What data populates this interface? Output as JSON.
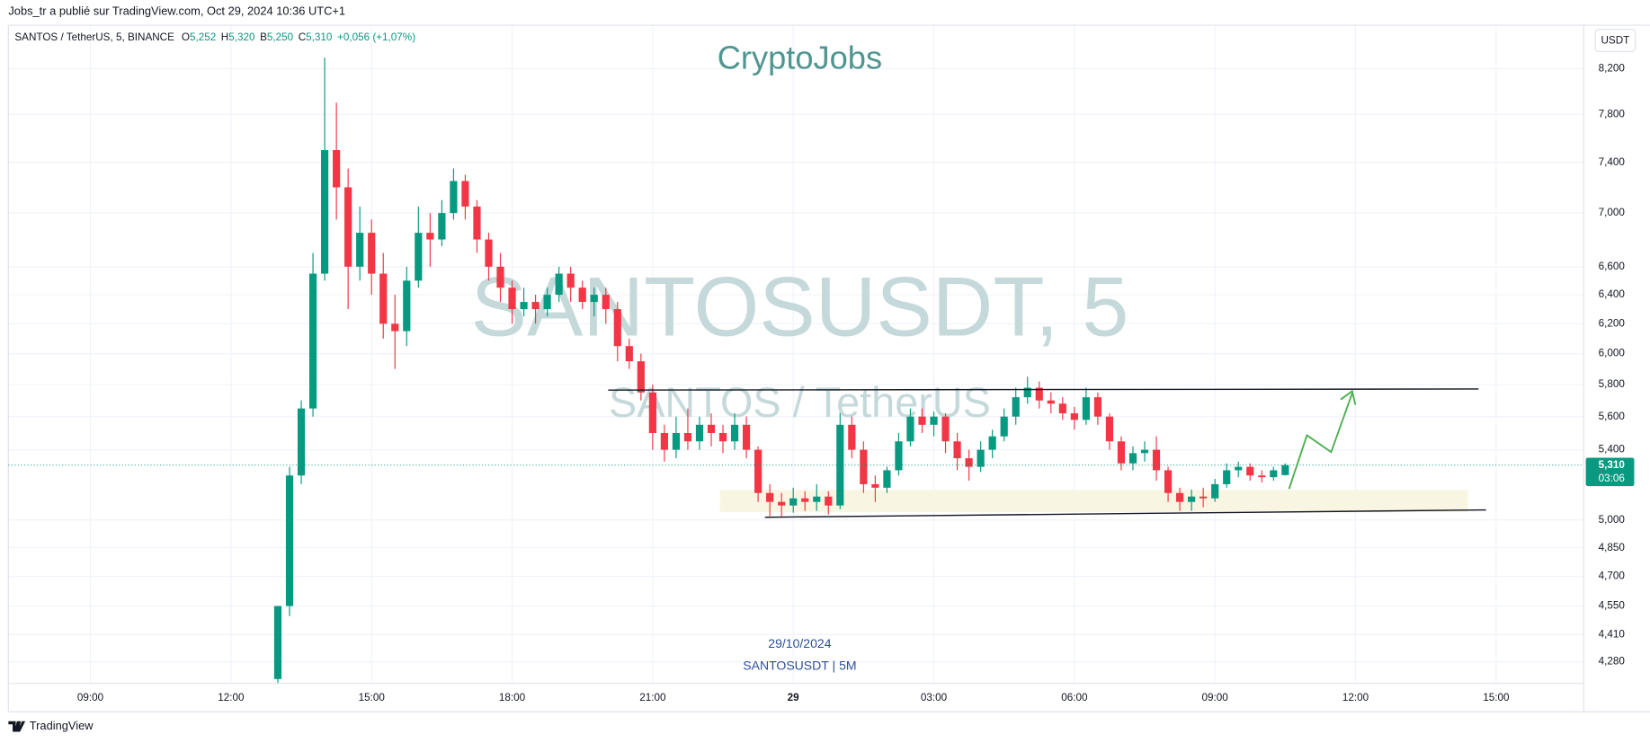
{
  "page": {
    "published": "Jobs_tr a publié sur TradingView.com, Oct 29, 2024 10:36 UTC+1",
    "symbol": "SANTOS / TetherUS, 5, BINANCE",
    "legend": [
      {
        "key": "O",
        "value": "5,252"
      },
      {
        "key": "H",
        "value": "5,320"
      },
      {
        "key": "B",
        "value": "5,250"
      },
      {
        "key": "C",
        "value": "5,310"
      }
    ],
    "change": "+0,056 (+1,07%)",
    "currency": "USDT",
    "brand": "CryptoJobs",
    "watermark": "SANTOSUSDT, 5",
    "watermark_sub": "SANTOS / TetherUS",
    "date": "29/10/2024",
    "caption": "SANTOSUSDT | 5M",
    "countdown": "03:06",
    "logo": "TradingView"
  },
  "chart_data": {
    "type": "candlestick",
    "log_scale": true,
    "grid": true,
    "up_color": "#089981",
    "down_color": "#f23645",
    "last_price": {
      "value": 5.31,
      "label": "5,310"
    },
    "xlim": [
      7.25,
      40.87
    ],
    "xticks": [
      {
        "value": 9,
        "label": "09:00"
      },
      {
        "value": 12,
        "label": "12:00"
      },
      {
        "value": 15,
        "label": "15:00"
      },
      {
        "value": 18,
        "label": "18:00"
      },
      {
        "value": 21,
        "label": "21:00"
      },
      {
        "value": 24,
        "label": "29"
      },
      {
        "value": 27,
        "label": "03:00"
      },
      {
        "value": 30,
        "label": "06:00"
      },
      {
        "value": 33,
        "label": "09:00"
      },
      {
        "value": 36,
        "label": "12:00"
      },
      {
        "value": 39,
        "label": "15:00"
      }
    ],
    "ylim": [
      4.18,
      8.6
    ],
    "yticks": [
      {
        "value": 8.2,
        "label": "8,200"
      },
      {
        "value": 7.8,
        "label": "7,800"
      },
      {
        "value": 7.4,
        "label": "7,400"
      },
      {
        "value": 7.0,
        "label": "7,000"
      },
      {
        "value": 6.6,
        "label": "6,600"
      },
      {
        "value": 6.4,
        "label": "6,400"
      },
      {
        "value": 6.2,
        "label": "6,200"
      },
      {
        "value": 6.0,
        "label": "6,000"
      },
      {
        "value": 5.8,
        "label": "5,800"
      },
      {
        "value": 5.6,
        "label": "5,600"
      },
      {
        "value": 5.4,
        "label": "5,400"
      },
      {
        "value": 5.0,
        "label": "5,000"
      },
      {
        "value": 4.85,
        "label": "4,850"
      },
      {
        "value": 4.7,
        "label": "4,700"
      },
      {
        "value": 4.55,
        "label": "4,550"
      },
      {
        "value": 4.41,
        "label": "4,410"
      },
      {
        "value": 4.28,
        "label": "4,280"
      }
    ],
    "x": [
      13,
      13.25,
      13.5,
      13.75,
      14,
      14.25,
      14.5,
      14.75,
      15,
      15.25,
      15.5,
      15.75,
      16,
      16.25,
      16.5,
      16.75,
      17,
      17.25,
      17.5,
      17.75,
      18,
      18.25,
      18.5,
      18.75,
      19,
      19.25,
      19.5,
      19.75,
      20,
      20.25,
      20.5,
      20.75,
      21,
      21.25,
      21.5,
      21.75,
      22,
      22.25,
      22.5,
      22.75,
      23,
      23.25,
      23.5,
      23.75,
      24,
      24.25,
      24.5,
      24.75,
      25,
      25.25,
      25.5,
      25.75,
      26,
      26.25,
      26.5,
      26.75,
      27,
      27.25,
      27.5,
      27.75,
      28,
      28.25,
      28.5,
      28.75,
      29,
      29.25,
      29.5,
      29.75,
      30,
      30.25,
      30.5,
      30.75,
      31,
      31.25,
      31.5,
      31.75,
      32,
      32.25,
      32.5,
      32.75,
      33,
      33.25,
      33.5,
      33.75,
      34,
      34.25,
      34.5
    ],
    "open": [
      4.2,
      4.55,
      5.25,
      5.65,
      6.55,
      7.5,
      7.2,
      6.6,
      6.85,
      6.55,
      6.2,
      6.15,
      6.5,
      6.85,
      6.8,
      7.0,
      7.25,
      7.05,
      6.8,
      6.6,
      6.45,
      6.3,
      6.35,
      6.3,
      6.4,
      6.55,
      6.45,
      6.35,
      6.4,
      6.3,
      6.05,
      5.95,
      5.75,
      5.5,
      5.4,
      5.5,
      5.45,
      5.55,
      5.5,
      5.45,
      5.55,
      5.4,
      5.15,
      5.1,
      5.08,
      5.12,
      5.1,
      5.13,
      5.08,
      5.55,
      5.4,
      5.2,
      5.18,
      5.28,
      5.45,
      5.6,
      5.55,
      5.6,
      5.45,
      5.35,
      5.3,
      5.4,
      5.48,
      5.6,
      5.72,
      5.78,
      5.7,
      5.68,
      5.62,
      5.58,
      5.72,
      5.6,
      5.45,
      5.32,
      5.38,
      5.4,
      5.28,
      5.15,
      5.1,
      5.13,
      5.12,
      5.2,
      5.28,
      5.3,
      5.25,
      5.24,
      5.252
    ],
    "high": [
      4.55,
      5.3,
      5.7,
      6.7,
      8.3,
      7.9,
      7.35,
      7.05,
      6.95,
      6.7,
      6.4,
      6.6,
      7.05,
      7.0,
      7.1,
      7.35,
      7.3,
      7.1,
      6.85,
      6.7,
      6.5,
      6.45,
      6.4,
      6.45,
      6.6,
      6.6,
      6.5,
      6.45,
      6.45,
      6.35,
      6.1,
      6.0,
      5.8,
      5.55,
      5.6,
      5.65,
      5.6,
      5.62,
      5.55,
      5.62,
      5.6,
      5.42,
      5.2,
      5.15,
      5.18,
      5.16,
      5.2,
      5.16,
      5.62,
      5.6,
      5.45,
      5.25,
      5.3,
      5.5,
      5.65,
      5.65,
      5.63,
      5.62,
      5.5,
      5.4,
      5.45,
      5.52,
      5.65,
      5.78,
      5.85,
      5.82,
      5.75,
      5.72,
      5.66,
      5.78,
      5.75,
      5.62,
      5.48,
      5.42,
      5.45,
      5.48,
      5.3,
      5.18,
      5.17,
      5.18,
      5.23,
      5.32,
      5.33,
      5.32,
      5.28,
      5.3,
      5.32
    ],
    "low": [
      4.18,
      4.5,
      5.2,
      5.6,
      6.5,
      6.95,
      6.3,
      6.5,
      6.4,
      6.1,
      5.9,
      6.05,
      6.45,
      6.6,
      6.75,
      6.95,
      6.95,
      6.7,
      6.5,
      6.35,
      6.2,
      6.25,
      6.2,
      6.25,
      6.35,
      6.35,
      6.3,
      6.25,
      6.2,
      5.95,
      5.9,
      5.7,
      5.4,
      5.33,
      5.35,
      5.4,
      5.4,
      5.42,
      5.38,
      5.4,
      5.35,
      5.1,
      5.02,
      5.02,
      5.04,
      5.05,
      5.05,
      5.03,
      5.06,
      5.35,
      5.15,
      5.1,
      5.15,
      5.25,
      5.42,
      5.5,
      5.48,
      5.38,
      5.28,
      5.22,
      5.27,
      5.35,
      5.45,
      5.55,
      5.68,
      5.65,
      5.62,
      5.58,
      5.52,
      5.55,
      5.55,
      5.4,
      5.28,
      5.28,
      5.33,
      5.22,
      5.1,
      5.05,
      5.05,
      5.07,
      5.1,
      5.18,
      5.24,
      5.22,
      5.21,
      5.22,
      5.25
    ],
    "close": [
      4.55,
      5.25,
      5.65,
      6.55,
      7.5,
      7.2,
      6.6,
      6.85,
      6.55,
      6.2,
      6.15,
      6.5,
      6.85,
      6.8,
      7.0,
      7.25,
      7.05,
      6.8,
      6.6,
      6.45,
      6.3,
      6.35,
      6.3,
      6.4,
      6.55,
      6.45,
      6.35,
      6.4,
      6.3,
      6.05,
      5.95,
      5.75,
      5.5,
      5.4,
      5.5,
      5.45,
      5.55,
      5.5,
      5.45,
      5.55,
      5.4,
      5.15,
      5.1,
      5.08,
      5.12,
      5.1,
      5.13,
      5.08,
      5.55,
      5.4,
      5.2,
      5.18,
      5.28,
      5.45,
      5.6,
      5.55,
      5.6,
      5.45,
      5.35,
      5.3,
      5.4,
      5.48,
      5.6,
      5.72,
      5.78,
      5.7,
      5.68,
      5.62,
      5.58,
      5.72,
      5.6,
      5.45,
      5.32,
      5.38,
      5.4,
      5.28,
      5.15,
      5.1,
      5.13,
      5.12,
      5.2,
      5.28,
      5.3,
      5.25,
      5.24,
      5.28,
      5.31
    ]
  }
}
